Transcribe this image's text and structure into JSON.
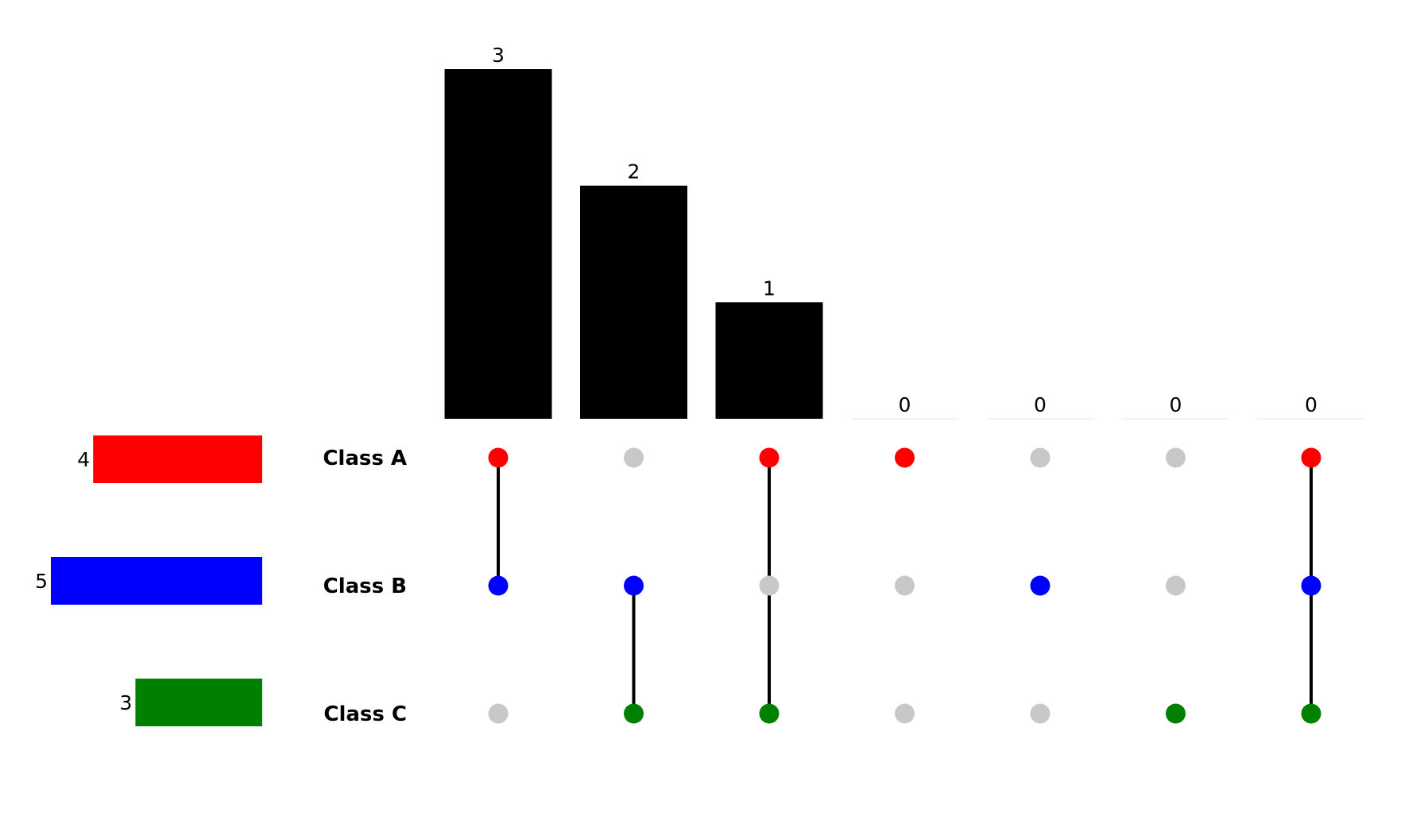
{
  "colors": {
    "background": "#ffffff",
    "bar": "#000000",
    "inactive_dot": "#c8c8c8",
    "connector": "#000000",
    "zero_baseline": "#eeeeee"
  },
  "chart_data": {
    "type": "upset",
    "title": "",
    "sets": [
      {
        "name": "Class A",
        "size": 4,
        "color": "#ff0000"
      },
      {
        "name": "Class B",
        "size": 5,
        "color": "#0000ff"
      },
      {
        "name": "Class C",
        "size": 3,
        "color": "#008000"
      }
    ],
    "intersections": [
      {
        "members": [
          true,
          true,
          false
        ],
        "count": 3
      },
      {
        "members": [
          false,
          true,
          true
        ],
        "count": 2
      },
      {
        "members": [
          true,
          false,
          true
        ],
        "count": 1
      },
      {
        "members": [
          true,
          false,
          false
        ],
        "count": 0
      },
      {
        "members": [
          false,
          true,
          false
        ],
        "count": 0
      },
      {
        "members": [
          false,
          false,
          true
        ],
        "count": 0
      },
      {
        "members": [
          true,
          true,
          true
        ],
        "count": 0
      }
    ],
    "intersection_ylim": [
      0,
      3
    ],
    "set_size_xlim": [
      0,
      5
    ],
    "grid": false,
    "legend": "none"
  }
}
